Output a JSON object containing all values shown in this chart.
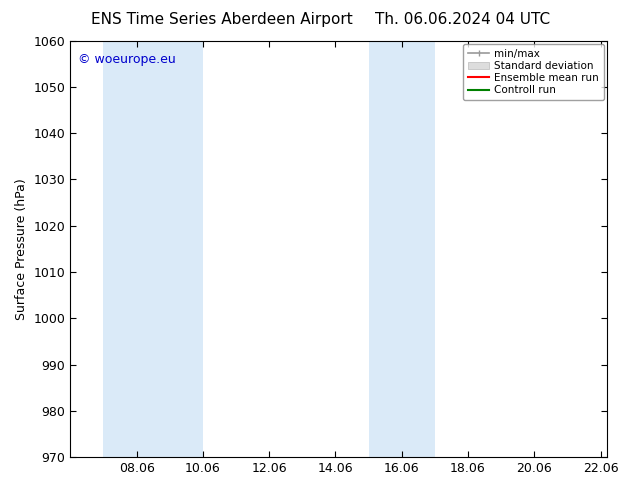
{
  "title_left": "ENS Time Series Aberdeen Airport",
  "title_right": "Th. 06.06.2024 04 UTC",
  "ylabel": "Surface Pressure (hPa)",
  "ylim": [
    970,
    1060
  ],
  "yticks": [
    970,
    980,
    990,
    1000,
    1010,
    1020,
    1030,
    1040,
    1050,
    1060
  ],
  "xlim_start": 6.0,
  "xlim_end": 22.2,
  "xtick_labels": [
    "08.06",
    "10.06",
    "12.06",
    "14.06",
    "16.06",
    "18.06",
    "20.06",
    "22.06"
  ],
  "xtick_positions": [
    8,
    10,
    12,
    14,
    16,
    18,
    20,
    22
  ],
  "shade_bands": [
    {
      "xmin": 7.0,
      "xmax": 10.0,
      "color": "#daeaf8"
    },
    {
      "xmin": 15.0,
      "xmax": 17.0,
      "color": "#daeaf8"
    }
  ],
  "watermark": "© woeurope.eu",
  "watermark_color": "#0000cc",
  "legend_labels": [
    "min/max",
    "Standard deviation",
    "Ensemble mean run",
    "Controll run"
  ],
  "legend_line_colors": [
    "#999999",
    "#cccccc",
    "#ff0000",
    "#008000"
  ],
  "bg_color": "#ffffff",
  "plot_bg_color": "#ffffff",
  "border_color": "#000000",
  "title_fontsize": 11,
  "axis_fontsize": 9,
  "tick_fontsize": 9
}
